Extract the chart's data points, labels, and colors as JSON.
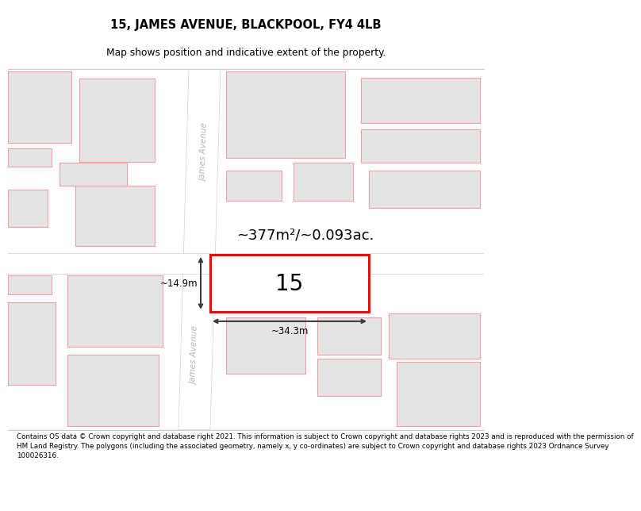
{
  "title": "15, JAMES AVENUE, BLACKPOOL, FY4 4LB",
  "subtitle": "Map shows position and indicative extent of the property.",
  "footer_line1": "Contains OS data © Crown copyright and database right 2021. This information is subject to Crown copyright and database rights 2023 and is reproduced with the permission of",
  "footer_line2": "HM Land Registry. The polygons (including the associated geometry, namely x, y co-ordinates) are subject to Crown copyright and database rights 2023 Ordnance Survey",
  "footer_line3": "100026316.",
  "map_bg": "#f8f8f8",
  "block_fill": "#e4e4e4",
  "block_outline": "#f5a0a0",
  "road_color": "#ffffff",
  "road_outline": "#d8d8d8",
  "highlight_outline": "#ff0000",
  "annotation_color": "#3a3a3a",
  "street_color": "#b8b8b8",
  "area_label": "~377m²/~0.093ac.",
  "width_label": "~34.3m",
  "height_label": "~14.9m",
  "street_label": "James Avenue",
  "title_fs": 10.5,
  "subtitle_fs": 8.8,
  "footer_fs": 6.3,
  "label_fs": 20,
  "area_fs": 13,
  "measure_fs": 8.5
}
